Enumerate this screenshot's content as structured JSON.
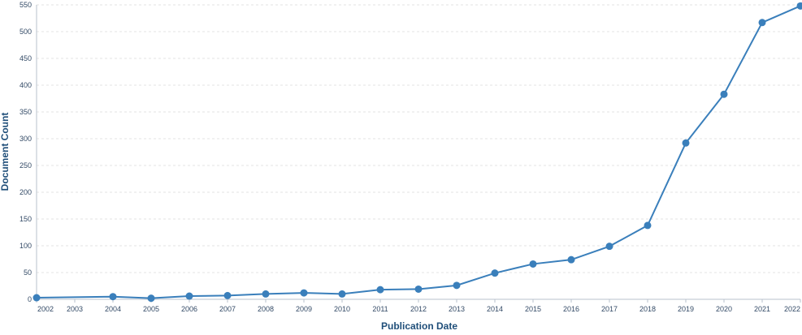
{
  "chart_data": {
    "type": "line",
    "xlabel": "Publication Date",
    "ylabel": "Document Count",
    "ylim": [
      0,
      550
    ],
    "y_ticks": [
      0,
      50,
      100,
      150,
      200,
      250,
      300,
      350,
      400,
      450,
      500,
      550
    ],
    "x": [
      2002,
      2003,
      2004,
      2005,
      2006,
      2007,
      2008,
      2009,
      2010,
      2011,
      2012,
      2013,
      2014,
      2015,
      2016,
      2017,
      2018,
      2019,
      2020,
      2021,
      2022
    ],
    "x_tick_labels": [
      "2002",
      "2003",
      "2004",
      "2005",
      "2006",
      "2007",
      "2008",
      "2009",
      "2010",
      "2011",
      "2012",
      "2013",
      "2014",
      "2015",
      "2016",
      "2017",
      "2018",
      "2019",
      "2020",
      "2021",
      "2022"
    ],
    "series": [
      {
        "points": [
          {
            "x": 2002,
            "y": 3
          },
          {
            "x": 2004,
            "y": 5
          },
          {
            "x": 2005,
            "y": 2
          },
          {
            "x": 2006,
            "y": 6
          },
          {
            "x": 2007,
            "y": 7
          },
          {
            "x": 2008,
            "y": 10
          },
          {
            "x": 2009,
            "y": 12
          },
          {
            "x": 2010,
            "y": 10
          },
          {
            "x": 2011,
            "y": 18
          },
          {
            "x": 2012,
            "y": 19
          },
          {
            "x": 2013,
            "y": 26
          },
          {
            "x": 2014,
            "y": 49
          },
          {
            "x": 2015,
            "y": 66
          },
          {
            "x": 2016,
            "y": 74
          },
          {
            "x": 2017,
            "y": 99
          },
          {
            "x": 2018,
            "y": 138
          },
          {
            "x": 2019,
            "y": 292
          },
          {
            "x": 2020,
            "y": 383
          },
          {
            "x": 2021,
            "y": 517
          },
          {
            "x": 2022,
            "y": 548
          }
        ]
      }
    ],
    "grid": true,
    "colors": {
      "series": "#3a7fbb",
      "axis_title": "#1f4e79",
      "tick_label": "#334a66",
      "grid": "#e3e3e3"
    }
  }
}
